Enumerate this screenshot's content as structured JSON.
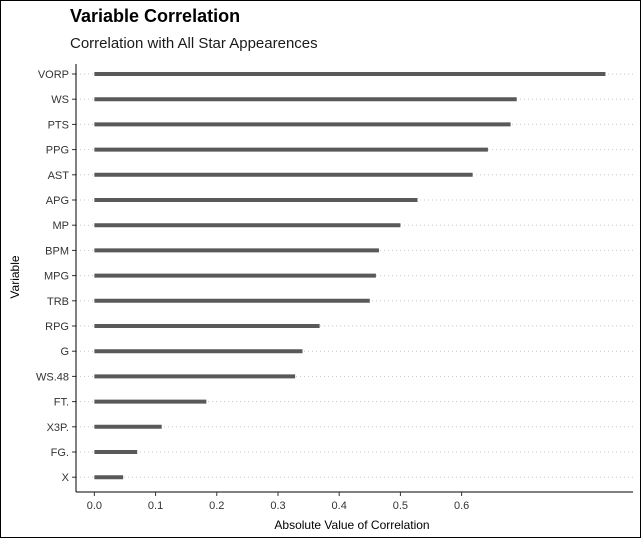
{
  "chart_data": {
    "type": "bar",
    "orientation": "horizontal",
    "title": "Variable Correlation",
    "subtitle": "Correlation with All Star Appearences",
    "xlabel": "Absolute Value of Correlation",
    "ylabel": "Variable",
    "xlim": [
      -0.03,
      0.88
    ],
    "xticks": [
      "0.0",
      "0.1",
      "0.2",
      "0.3",
      "0.4",
      "0.5",
      "0.6"
    ],
    "xtick_values": [
      0.0,
      0.1,
      0.2,
      0.3,
      0.4,
      0.5,
      0.6
    ],
    "categories": [
      "VORP",
      "WS",
      "PTS",
      "PPG",
      "AST",
      "APG",
      "MP",
      "BPM",
      "MPG",
      "TRB",
      "RPG",
      "G",
      "WS.48",
      "FT.",
      "X3P.",
      "FG.",
      "X"
    ],
    "values": [
      0.835,
      0.69,
      0.68,
      0.643,
      0.618,
      0.528,
      0.5,
      0.465,
      0.46,
      0.45,
      0.368,
      0.34,
      0.328,
      0.183,
      0.11,
      0.07,
      0.047
    ],
    "grid": "horizontal-dotted",
    "legend": "none",
    "bar_color": "#595959"
  }
}
